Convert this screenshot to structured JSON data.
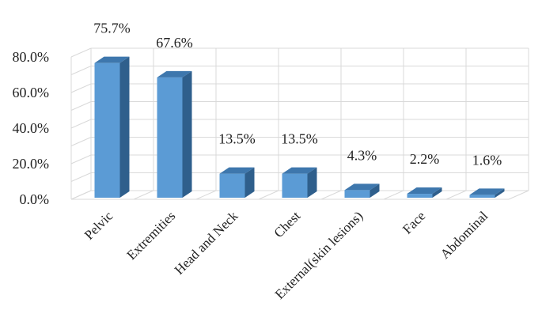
{
  "chart_data": {
    "type": "bar",
    "categories": [
      "Pelvic",
      "Extremities",
      "Head and Neck",
      "Chest",
      "External(skin lesions)",
      "Face",
      "Abdominal"
    ],
    "values": [
      75.7,
      67.6,
      13.5,
      13.5,
      4.3,
      2.2,
      1.6
    ],
    "data_labels": [
      "75.7%",
      "67.6%",
      "13.5%",
      "13.5%",
      "4.3%",
      "2.2%",
      "1.6%"
    ],
    "y_ticks": [
      "0.0%",
      "20.0%",
      "40.0%",
      "60.0%",
      "80.0%"
    ],
    "y_tick_values": [
      0,
      20,
      40,
      60,
      80
    ],
    "ylim": [
      0,
      80
    ],
    "grid": true,
    "legend": "none",
    "title": "",
    "xlabel": "",
    "ylabel": "",
    "colors": {
      "bar_front": "#5b9bd5",
      "bar_side": "#2f5f8c",
      "bar_top": "#3e77ad",
      "grid": "#d9d9d9"
    }
  }
}
